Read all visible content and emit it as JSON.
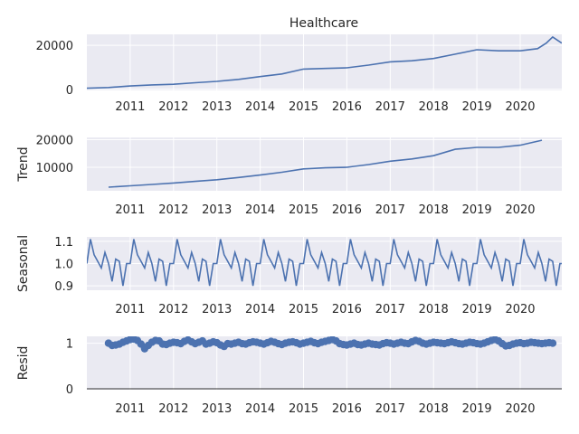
{
  "figure": {
    "title": "Healthcare",
    "background": "#ffffff",
    "panel_bg": "#eaeaf2",
    "grid_color": "#ffffff",
    "line_color": "#4c72b0"
  },
  "chart_data": [
    {
      "type": "line",
      "panel": "observed",
      "title": "Healthcare",
      "ylabel": "",
      "xlim": [
        2010.0,
        2020.96
      ],
      "ylim": [
        -500,
        25000
      ],
      "yticks": [
        0,
        20000
      ],
      "xticks": [
        2011,
        2012,
        2013,
        2014,
        2015,
        2016,
        2017,
        2018,
        2019,
        2020
      ],
      "grid": true,
      "x": [
        2010.0,
        2010.5,
        2011.0,
        2011.5,
        2012.0,
        2012.5,
        2013.0,
        2013.5,
        2014.0,
        2014.5,
        2015.0,
        2015.5,
        2016.0,
        2016.5,
        2017.0,
        2017.5,
        2018.0,
        2018.5,
        2019.0,
        2019.5,
        2020.0,
        2020.4,
        2020.6,
        2020.75,
        2020.96
      ],
      "values": [
        500,
        800,
        1500,
        2000,
        2300,
        3000,
        3600,
        4500,
        5800,
        7000,
        9200,
        9500,
        9800,
        11000,
        12500,
        13000,
        14000,
        16000,
        18000,
        17500,
        17500,
        18500,
        21000,
        23800,
        21000
      ]
    },
    {
      "type": "line",
      "panel": "trend",
      "ylabel": "Trend",
      "xlim": [
        2010.0,
        2020.96
      ],
      "ylim": [
        1500,
        20800
      ],
      "yticks": [
        10000,
        20000
      ],
      "xticks": [
        2011,
        2012,
        2013,
        2014,
        2015,
        2016,
        2017,
        2018,
        2019,
        2020
      ],
      "grid": true,
      "x": [
        2010.5,
        2011.0,
        2011.5,
        2012.0,
        2012.5,
        2013.0,
        2013.5,
        2014.0,
        2014.5,
        2015.0,
        2015.5,
        2016.0,
        2016.5,
        2017.0,
        2017.5,
        2018.0,
        2018.5,
        2019.0,
        2019.5,
        2020.0,
        2020.5
      ],
      "values": [
        2800,
        3300,
        3800,
        4300,
        4900,
        5500,
        6300,
        7200,
        8200,
        9400,
        9800,
        10000,
        11000,
        12200,
        13000,
        14200,
        16500,
        17200,
        17200,
        18000,
        19800
      ]
    },
    {
      "type": "line",
      "panel": "seasonal",
      "ylabel": "Seasonal",
      "xlim": [
        2010.0,
        2020.96
      ],
      "ylim": [
        0.88,
        1.12
      ],
      "yticks": [
        0.9,
        1.0,
        1.1
      ],
      "ytick_labels": [
        "0.9",
        "1.0",
        "1.1"
      ],
      "xticks": [
        2011,
        2012,
        2013,
        2014,
        2015,
        2016,
        2017,
        2018,
        2019,
        2020
      ],
      "grid": true,
      "period_pattern": [
        1.0,
        1.11,
        1.04,
        1.01,
        0.98,
        1.05,
        1.0,
        0.92,
        1.02,
        1.01,
        0.9,
        1.0
      ],
      "x_start": 2010.0,
      "x_end": 2020.96,
      "x_step": 0.083333
    },
    {
      "type": "scatter",
      "panel": "resid",
      "ylabel": "Resid",
      "xlim": [
        2010.0,
        2020.96
      ],
      "ylim": [
        -0.02,
        1.15
      ],
      "yticks": [
        0,
        1
      ],
      "xticks": [
        2011,
        2012,
        2013,
        2014,
        2015,
        2016,
        2017,
        2018,
        2019,
        2020
      ],
      "grid": true,
      "x_start": 2010.5,
      "x_end": 2020.5,
      "x_step": 0.083333,
      "values": [
        1.0,
        0.95,
        0.96,
        0.98,
        1.02,
        1.05,
        1.08,
        1.09,
        1.06,
        0.98,
        0.88,
        0.95,
        1.02,
        1.06,
        1.05,
        0.98,
        0.97,
        1.0,
        1.02,
        1.01,
        0.99,
        1.04,
        1.07,
        1.03,
        0.99,
        1.02,
        1.05,
        0.98,
        1.0,
        1.03,
        1.01,
        0.96,
        0.93,
        0.99,
        0.98,
        1.0,
        1.02,
        0.99,
        0.98,
        1.01,
        1.03,
        1.02,
        1.0,
        0.98,
        1.01,
        1.04,
        1.02,
        0.99,
        0.97,
        1.0,
        1.02,
        1.03,
        1.01,
        0.98,
        1.0,
        1.02,
        1.04,
        1.01,
        0.99,
        1.02,
        1.04,
        1.06,
        1.08,
        1.05,
        0.99,
        0.97,
        0.96,
        0.98,
        1.0,
        0.97,
        0.96,
        0.98,
        1.0,
        0.98,
        0.97,
        0.96,
        0.99,
        1.01,
        1.0,
        0.98,
        1.0,
        1.02,
        1.0,
        0.99,
        1.03,
        1.06,
        1.04,
        1.0,
        0.98,
        1.0,
        1.02,
        1.01,
        1.0,
        0.99,
        1.01,
        1.03,
        1.01,
        0.99,
        0.98,
        1.0,
        1.02,
        1.01,
        0.99,
        0.98,
        1.0,
        1.03,
        1.06,
        1.08,
        1.05,
        0.99,
        0.94,
        0.95,
        0.98,
        1.0,
        1.01,
        0.99,
        1.0,
        1.02,
        1.01,
        1.0,
        0.99,
        1.0,
        1.01,
        1.0
      ]
    }
  ]
}
